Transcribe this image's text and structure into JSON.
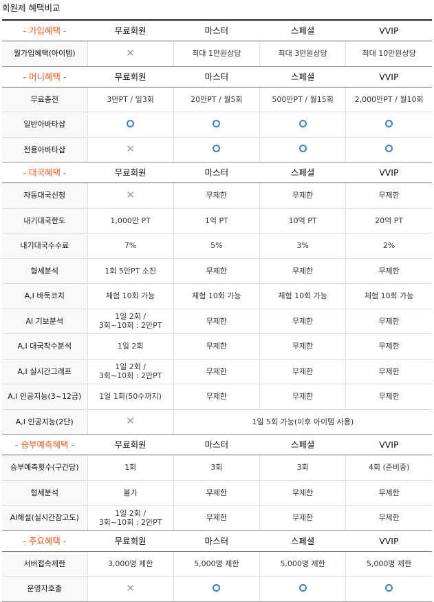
{
  "title": "회원제 혜택비교",
  "columns": [
    "무료회원",
    "마스터",
    "스페셜",
    "VVIP"
  ],
  "sections": [
    {
      "name": "- 가입혜택 -",
      "rows": [
        {
          "label": "월가입혜택(아이템)",
          "values": [
            "x-icon",
            "최대 1만원상당",
            "최대 3만원상당",
            "최대 10만원상당"
          ]
        }
      ]
    },
    {
      "name": "- 머니혜택 -",
      "rows": [
        {
          "label": "무료충전",
          "values": [
            "3만PT / 일3회",
            "20만PT / 월5회",
            "500만PT / 월15회",
            "2,000만PT / 월10회"
          ]
        },
        {
          "label": "일반아바타샵",
          "values": [
            "o-icon",
            "o-icon",
            "o-icon",
            "o-icon"
          ]
        },
        {
          "label": "전용아바타샵",
          "values": [
            "x-icon",
            "o-icon",
            "o-icon",
            "o-icon"
          ]
        }
      ]
    },
    {
      "name": "- 대국혜택 -",
      "rows": [
        {
          "label": "자동대국신청",
          "values": [
            "x-icon",
            "무제한",
            "무제한",
            "무제한"
          ]
        },
        {
          "label": "내기대국한도",
          "values": [
            "1,000만 PT",
            "1억 PT",
            "10억 PT",
            "20억 PT"
          ]
        },
        {
          "label": "내기대국수수료",
          "values": [
            "7%",
            "5%",
            "3%",
            "2%"
          ]
        },
        {
          "label": "형세분석",
          "values": [
            "1회 5만PT 소진",
            "무제한",
            "무제한",
            "무제한"
          ]
        },
        {
          "label": "A,I 바둑코치",
          "values": [
            "체험 10회 가능",
            "체험 10회 가능",
            "체험 10회 가능",
            "체험 10회 가능"
          ]
        },
        {
          "label": "AI 기보분석",
          "values": [
            "1일 2회 /\n3회~10회 : 2만PT",
            "무제한",
            "무제한",
            "무제한"
          ]
        },
        {
          "label": "A,I 대국착수분석",
          "values": [
            "1일 2회",
            "무제한",
            "무제한",
            "무제한"
          ]
        },
        {
          "label": "A,I 실시간그래프",
          "values": [
            "1일 2회 /\n3회~10회 : 2만PT",
            "무제한",
            "무제한",
            "무제한"
          ]
        },
        {
          "label": "A,I 인공지능(3~12급)",
          "values": [
            "1일 1회(50수까지)",
            "무제한",
            "무제한",
            "무제한"
          ]
        },
        {
          "label": "A,I 인공지능(2단)",
          "values": [
            "x-icon",
            "1일 5회 가능(이후 아이템 사용)"
          ]
        }
      ]
    },
    {
      "name": "- 승부예측혜택 -",
      "rows": [
        {
          "label": "승부예측횟수(구간당)",
          "values": [
            "1회",
            "3회",
            "3회",
            "4회 (준비중)"
          ]
        },
        {
          "label": "형세분석",
          "values": [
            "불가",
            "무제한",
            "무제한",
            "무제한"
          ]
        },
        {
          "label": "AI해설(실시간참고도)",
          "values": [
            "1일 2회 /\n3회~10회 : 2만PT",
            "무제한",
            "무제한",
            "무제한"
          ]
        }
      ]
    },
    {
      "name": "- 주요혜택 -",
      "rows": [
        {
          "label": "서버접속제한",
          "values": [
            "3,000명 제한",
            "5,000명 제한",
            "5,000명 제한",
            "5,000명 제한"
          ]
        },
        {
          "label": "운영자호출",
          "values": [
            "x-icon",
            "o-icon",
            "o-icon",
            "o-icon"
          ]
        }
      ]
    }
  ],
  "colors": {
    "section_accent": "#ff5a1f",
    "check_circle": "#3a7fc4",
    "x_mark": "#999999"
  }
}
